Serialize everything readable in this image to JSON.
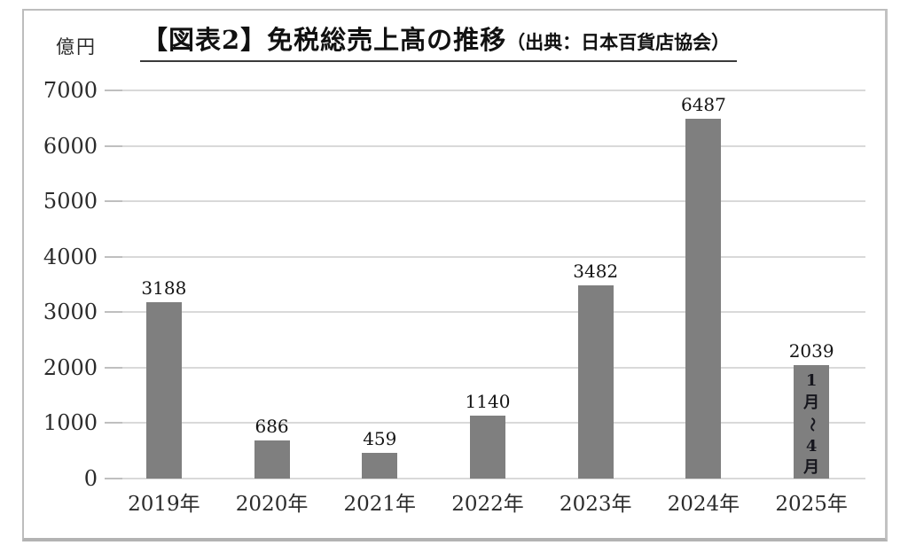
{
  "title": {
    "main": "【図表2】免税総売上髙の推移",
    "source": "（出典：日本百貨店協会）"
  },
  "y_axis": {
    "unit_label": "億円"
  },
  "chart_data": {
    "type": "bar",
    "title": "【図表2】免税総売上髙の推移（出典：日本百貨店協会）",
    "ylabel": "億円",
    "xlabel": "",
    "categories": [
      "2019年",
      "2020年",
      "2021年",
      "2022年",
      "2023年",
      "2024年",
      "2025年"
    ],
    "values": [
      3188,
      686,
      459,
      1140,
      3482,
      6487,
      2039
    ],
    "data_labels": [
      "3188",
      "686",
      "459",
      "1140",
      "3482",
      "6487",
      "2039"
    ],
    "annotation": {
      "category": "2025年",
      "text": "1月～4月",
      "placement": "inside-bar-vertical"
    },
    "ylim": [
      0,
      7000
    ],
    "yticks": [
      0,
      1000,
      2000,
      3000,
      4000,
      5000,
      6000,
      7000
    ],
    "grid": true,
    "legend_position": "none",
    "colors": {
      "bar": "#7f7f7f",
      "gridline": "#d9d9d9",
      "tick": "#bfbfbf",
      "label_text": "#141414",
      "axis_text": "#2b2b2b",
      "title_underline": "#3a3a3a"
    }
  }
}
